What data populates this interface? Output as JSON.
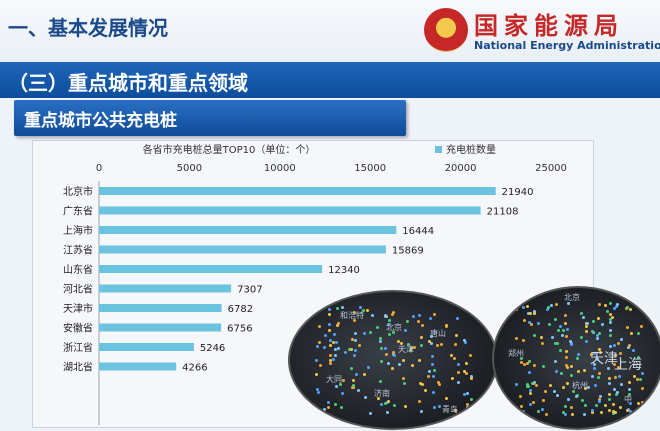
{
  "header": {
    "heading": "一、基本发展情况",
    "logo_cn": "国家能源局",
    "logo_en": "National Energy Administration"
  },
  "section": {
    "title": "（三）重点城市和重点领域"
  },
  "subtitle": "重点城市公共充电桩",
  "chart_data": {
    "type": "bar",
    "orientation": "horizontal",
    "title": "各省市充电桩总量TOP10（单位：个）",
    "legend": [
      "充电桩数量"
    ],
    "legend_position": "top-right",
    "categories": [
      "北京市",
      "广东省",
      "上海市",
      "江苏省",
      "山东省",
      "河北省",
      "天津市",
      "安徽省",
      "浙江省",
      "湖北省"
    ],
    "series": [
      {
        "name": "充电桩数量",
        "values": [
          21940,
          21108,
          16444,
          15869,
          12340,
          7307,
          6782,
          6756,
          5246,
          4266
        ]
      }
    ],
    "xlim": [
      0,
      25000
    ],
    "x_ticks": [
      "0",
      "5000",
      "10000",
      "15000",
      "20000",
      "25000"
    ],
    "x_axis_position": "top",
    "grid": false,
    "bar_color": "#6cc3df"
  },
  "maps": {
    "left_labels": [
      "和浩特",
      "北京",
      "天津",
      "唐山",
      "大同",
      "济南",
      "青岛"
    ],
    "right_labels": [
      "北京",
      "天津",
      "上海",
      "郑州",
      "杭州",
      "中"
    ]
  },
  "colors": {
    "heading": "#1a4a8a",
    "band": "#1560b0",
    "logo_red": "#c62828"
  }
}
